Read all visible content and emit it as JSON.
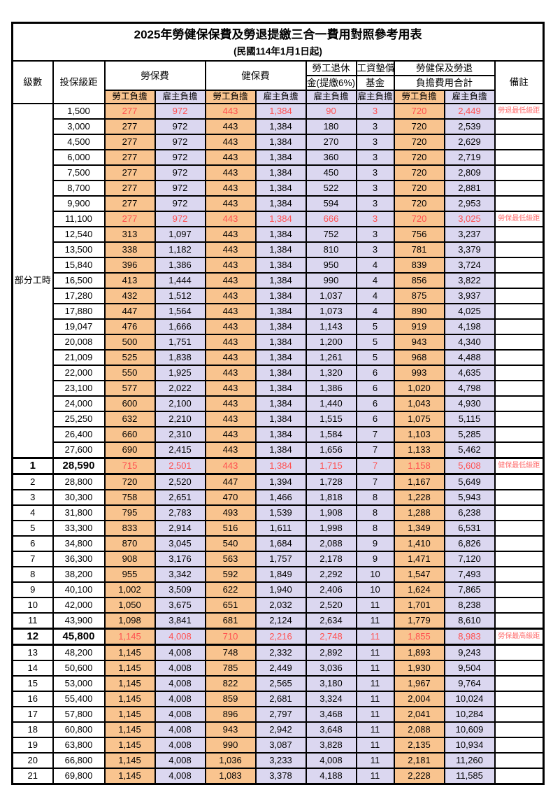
{
  "title": "2025年勞健保保費及勞退提繳三合一費用對照參考用表",
  "subtitle": "(民國114年1月1日起)",
  "colors": {
    "employee_col_bg": "#F9C48F",
    "employer_col_bg": "#DBD7F0",
    "highlight_text": "#FF5050",
    "note_text": "#FF7070",
    "border": "#000000"
  },
  "table": {
    "part_time_label": "部分工時",
    "part_time_rowspan": 23,
    "header": {
      "level": "級數",
      "salary": "投保級距",
      "labor_insurance": "勞保費",
      "health_insurance": "健保費",
      "pension_line1": "勞工退休",
      "pension_line2": "金(提繳6%)",
      "wage_fund_line1": "工資墊償",
      "wage_fund_line2": "基金",
      "total_line1": "勞健保及勞退",
      "total_line2": "負擔費用合計",
      "note": "備註",
      "employee": "勞工負擔",
      "employer": "雇主負擔"
    },
    "rows": [
      {
        "level": "",
        "salary": "1,500",
        "values": [
          "277",
          "972",
          "443",
          "1,384",
          "90",
          "3",
          "720",
          "2,449"
        ],
        "note": "勞退最低級距",
        "red": true,
        "big": false
      },
      {
        "level": "",
        "salary": "3,000",
        "values": [
          "277",
          "972",
          "443",
          "1,384",
          "180",
          "3",
          "720",
          "2,539"
        ],
        "note": "",
        "red": false,
        "big": false
      },
      {
        "level": "",
        "salary": "4,500",
        "values": [
          "277",
          "972",
          "443",
          "1,384",
          "270",
          "3",
          "720",
          "2,629"
        ],
        "note": "",
        "red": false,
        "big": false
      },
      {
        "level": "",
        "salary": "6,000",
        "values": [
          "277",
          "972",
          "443",
          "1,384",
          "360",
          "3",
          "720",
          "2,719"
        ],
        "note": "",
        "red": false,
        "big": false
      },
      {
        "level": "",
        "salary": "7,500",
        "values": [
          "277",
          "972",
          "443",
          "1,384",
          "450",
          "3",
          "720",
          "2,809"
        ],
        "note": "",
        "red": false,
        "big": false
      },
      {
        "level": "",
        "salary": "8,700",
        "values": [
          "277",
          "972",
          "443",
          "1,384",
          "522",
          "3",
          "720",
          "2,881"
        ],
        "note": "",
        "red": false,
        "big": false
      },
      {
        "level": "",
        "salary": "9,900",
        "values": [
          "277",
          "972",
          "443",
          "1,384",
          "594",
          "3",
          "720",
          "2,953"
        ],
        "note": "",
        "red": false,
        "big": false
      },
      {
        "level": "",
        "salary": "11,100",
        "values": [
          "277",
          "972",
          "443",
          "1,384",
          "666",
          "3",
          "720",
          "3,025"
        ],
        "note": "勞保最低級距",
        "red": true,
        "big": false
      },
      {
        "level": "",
        "salary": "12,540",
        "values": [
          "313",
          "1,097",
          "443",
          "1,384",
          "752",
          "3",
          "756",
          "3,237"
        ],
        "note": "",
        "red": false,
        "big": false
      },
      {
        "level": "",
        "salary": "13,500",
        "values": [
          "338",
          "1,182",
          "443",
          "1,384",
          "810",
          "3",
          "781",
          "3,379"
        ],
        "note": "",
        "red": false,
        "big": false
      },
      {
        "level": "",
        "salary": "15,840",
        "values": [
          "396",
          "1,386",
          "443",
          "1,384",
          "950",
          "4",
          "839",
          "3,724"
        ],
        "note": "",
        "red": false,
        "big": false
      },
      {
        "level": "",
        "salary": "16,500",
        "values": [
          "413",
          "1,444",
          "443",
          "1,384",
          "990",
          "4",
          "856",
          "3,822"
        ],
        "note": "",
        "red": false,
        "big": false
      },
      {
        "level": "",
        "salary": "17,280",
        "values": [
          "432",
          "1,512",
          "443",
          "1,384",
          "1,037",
          "4",
          "875",
          "3,937"
        ],
        "note": "",
        "red": false,
        "big": false
      },
      {
        "level": "",
        "salary": "17,880",
        "values": [
          "447",
          "1,564",
          "443",
          "1,384",
          "1,073",
          "4",
          "890",
          "4,025"
        ],
        "note": "",
        "red": false,
        "big": false
      },
      {
        "level": "",
        "salary": "19,047",
        "values": [
          "476",
          "1,666",
          "443",
          "1,384",
          "1,143",
          "5",
          "919",
          "4,198"
        ],
        "note": "",
        "red": false,
        "big": false
      },
      {
        "level": "",
        "salary": "20,008",
        "values": [
          "500",
          "1,751",
          "443",
          "1,384",
          "1,200",
          "5",
          "943",
          "4,340"
        ],
        "note": "",
        "red": false,
        "big": false
      },
      {
        "level": "",
        "salary": "21,009",
        "values": [
          "525",
          "1,838",
          "443",
          "1,384",
          "1,261",
          "5",
          "968",
          "4,488"
        ],
        "note": "",
        "red": false,
        "big": false
      },
      {
        "level": "",
        "salary": "22,000",
        "values": [
          "550",
          "1,925",
          "443",
          "1,384",
          "1,320",
          "6",
          "993",
          "4,635"
        ],
        "note": "",
        "red": false,
        "big": false
      },
      {
        "level": "",
        "salary": "23,100",
        "values": [
          "577",
          "2,022",
          "443",
          "1,384",
          "1,386",
          "6",
          "1,020",
          "4,798"
        ],
        "note": "",
        "red": false,
        "big": false
      },
      {
        "level": "",
        "salary": "24,000",
        "values": [
          "600",
          "2,100",
          "443",
          "1,384",
          "1,440",
          "6",
          "1,043",
          "4,930"
        ],
        "note": "",
        "red": false,
        "big": false
      },
      {
        "level": "",
        "salary": "25,250",
        "values": [
          "632",
          "2,210",
          "443",
          "1,384",
          "1,515",
          "6",
          "1,075",
          "5,115"
        ],
        "note": "",
        "red": false,
        "big": false
      },
      {
        "level": "",
        "salary": "26,400",
        "values": [
          "660",
          "2,310",
          "443",
          "1,384",
          "1,584",
          "7",
          "1,103",
          "5,285"
        ],
        "note": "",
        "red": false,
        "big": false
      },
      {
        "level": "",
        "salary": "27,600",
        "values": [
          "690",
          "2,415",
          "443",
          "1,384",
          "1,656",
          "7",
          "1,133",
          "5,462"
        ],
        "note": "",
        "red": false,
        "big": false
      },
      {
        "level": "1",
        "salary": "28,590",
        "values": [
          "715",
          "2,501",
          "443",
          "1,384",
          "1,715",
          "7",
          "1,158",
          "5,608"
        ],
        "note": "健保最低級距",
        "red": true,
        "big": true
      },
      {
        "level": "2",
        "salary": "28,800",
        "values": [
          "720",
          "2,520",
          "447",
          "1,394",
          "1,728",
          "7",
          "1,167",
          "5,649"
        ],
        "note": "",
        "red": false,
        "big": false
      },
      {
        "level": "3",
        "salary": "30,300",
        "values": [
          "758",
          "2,651",
          "470",
          "1,466",
          "1,818",
          "8",
          "1,228",
          "5,943"
        ],
        "note": "",
        "red": false,
        "big": false
      },
      {
        "level": "4",
        "salary": "31,800",
        "values": [
          "795",
          "2,783",
          "493",
          "1,539",
          "1,908",
          "8",
          "1,288",
          "6,238"
        ],
        "note": "",
        "red": false,
        "big": false
      },
      {
        "level": "5",
        "salary": "33,300",
        "values": [
          "833",
          "2,914",
          "516",
          "1,611",
          "1,998",
          "8",
          "1,349",
          "6,531"
        ],
        "note": "",
        "red": false,
        "big": false
      },
      {
        "level": "6",
        "salary": "34,800",
        "values": [
          "870",
          "3,045",
          "540",
          "1,684",
          "2,088",
          "9",
          "1,410",
          "6,826"
        ],
        "note": "",
        "red": false,
        "big": false
      },
      {
        "level": "7",
        "salary": "36,300",
        "values": [
          "908",
          "3,176",
          "563",
          "1,757",
          "2,178",
          "9",
          "1,471",
          "7,120"
        ],
        "note": "",
        "red": false,
        "big": false
      },
      {
        "level": "8",
        "salary": "38,200",
        "values": [
          "955",
          "3,342",
          "592",
          "1,849",
          "2,292",
          "10",
          "1,547",
          "7,493"
        ],
        "note": "",
        "red": false,
        "big": false
      },
      {
        "level": "9",
        "salary": "40,100",
        "values": [
          "1,002",
          "3,509",
          "622",
          "1,940",
          "2,406",
          "10",
          "1,624",
          "7,865"
        ],
        "note": "",
        "red": false,
        "big": false
      },
      {
        "level": "10",
        "salary": "42,000",
        "values": [
          "1,050",
          "3,675",
          "651",
          "2,032",
          "2,520",
          "11",
          "1,701",
          "8,238"
        ],
        "note": "",
        "red": false,
        "big": false
      },
      {
        "level": "11",
        "salary": "43,900",
        "values": [
          "1,098",
          "3,841",
          "681",
          "2,124",
          "2,634",
          "11",
          "1,779",
          "8,610"
        ],
        "note": "",
        "red": false,
        "big": false
      },
      {
        "level": "12",
        "salary": "45,800",
        "values": [
          "1,145",
          "4,008",
          "710",
          "2,216",
          "2,748",
          "11",
          "1,855",
          "8,983"
        ],
        "note": "勞保最高級距",
        "red": true,
        "big": true
      },
      {
        "level": "13",
        "salary": "48,200",
        "values": [
          "1,145",
          "4,008",
          "748",
          "2,332",
          "2,892",
          "11",
          "1,893",
          "9,243"
        ],
        "note": "",
        "red": false,
        "big": false
      },
      {
        "level": "14",
        "salary": "50,600",
        "values": [
          "1,145",
          "4,008",
          "785",
          "2,449",
          "3,036",
          "11",
          "1,930",
          "9,504"
        ],
        "note": "",
        "red": false,
        "big": false
      },
      {
        "level": "15",
        "salary": "53,000",
        "values": [
          "1,145",
          "4,008",
          "822",
          "2,565",
          "3,180",
          "11",
          "1,967",
          "9,764"
        ],
        "note": "",
        "red": false,
        "big": false
      },
      {
        "level": "16",
        "salary": "55,400",
        "values": [
          "1,145",
          "4,008",
          "859",
          "2,681",
          "3,324",
          "11",
          "2,004",
          "10,024"
        ],
        "note": "",
        "red": false,
        "big": false
      },
      {
        "level": "17",
        "salary": "57,800",
        "values": [
          "1,145",
          "4,008",
          "896",
          "2,797",
          "3,468",
          "11",
          "2,041",
          "10,284"
        ],
        "note": "",
        "red": false,
        "big": false
      },
      {
        "level": "18",
        "salary": "60,800",
        "values": [
          "1,145",
          "4,008",
          "943",
          "2,942",
          "3,648",
          "11",
          "2,088",
          "10,609"
        ],
        "note": "",
        "red": false,
        "big": false
      },
      {
        "level": "19",
        "salary": "63,800",
        "values": [
          "1,145",
          "4,008",
          "990",
          "3,087",
          "3,828",
          "11",
          "2,135",
          "10,934"
        ],
        "note": "",
        "red": false,
        "big": false
      },
      {
        "level": "20",
        "salary": "66,800",
        "values": [
          "1,145",
          "4,008",
          "1,036",
          "3,233",
          "4,008",
          "11",
          "2,181",
          "11,260"
        ],
        "note": "",
        "red": false,
        "big": false
      },
      {
        "level": "21",
        "salary": "69,800",
        "values": [
          "1,145",
          "4,008",
          "1,083",
          "3,378",
          "4,188",
          "11",
          "2,228",
          "11,585"
        ],
        "note": "",
        "red": false,
        "big": false
      }
    ]
  }
}
